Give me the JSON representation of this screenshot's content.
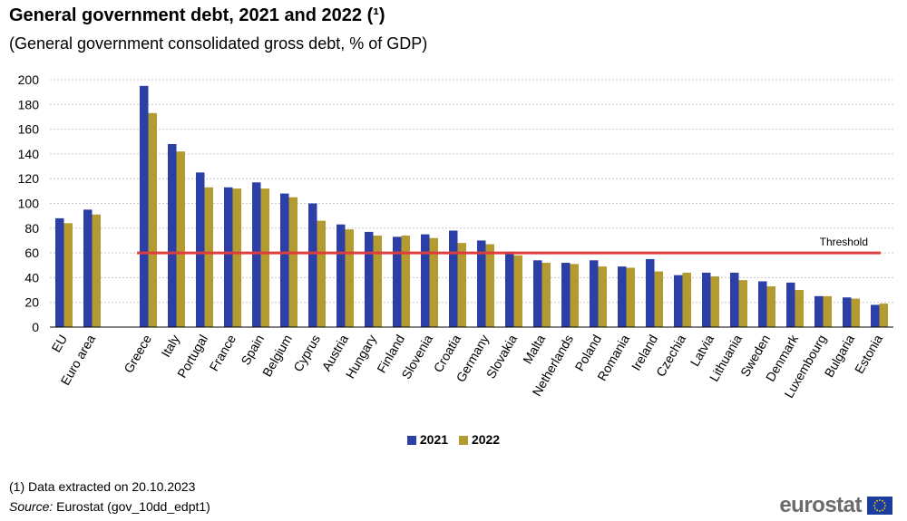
{
  "title": "General government debt, 2021 and 2022 (¹)",
  "subtitle": "(General government consolidated gross debt, % of GDP)",
  "footnote": "(1) Data extracted on 20.10.2023",
  "source": {
    "label": "Source:",
    "text": " Eurostat (gov_10dd_edpt1)"
  },
  "logo_text": "eurostat",
  "colors": {
    "series_2021": "#2b3fa6",
    "series_2022": "#b39a31",
    "threshold": "#e03c3c",
    "grid": "#c8c8c8"
  },
  "chart_data": {
    "type": "bar",
    "title": "General government debt, 2021 and 2022 (¹)",
    "subtitle": "(General government consolidated gross debt, % of GDP)",
    "ylim": [
      0,
      200
    ],
    "yticks": [
      0,
      20,
      40,
      60,
      80,
      100,
      120,
      140,
      160,
      180,
      200
    ],
    "grid": true,
    "legend_position": "bottom",
    "categories": [
      "EU",
      "Euro area",
      "",
      "Greece",
      "Italy",
      "Portugal",
      "France",
      "Spain",
      "Belgium",
      "Cyprus",
      "Austria",
      "Hungary",
      "Finland",
      "Slovenia",
      "Croatia",
      "Germany",
      "Slovakia",
      "Malta",
      "Netherlands",
      "Poland",
      "Romania",
      "Ireland",
      "Czechia",
      "Latvia",
      "Lithuania",
      "Sweden",
      "Denmark",
      "Luxembourg",
      "Bulgaria",
      "Estonia"
    ],
    "series": [
      {
        "name": "2021",
        "values": [
          88,
          95,
          null,
          195,
          148,
          125,
          113,
          117,
          108,
          100,
          83,
          77,
          73,
          75,
          78,
          70,
          61,
          54,
          52,
          54,
          49,
          55,
          42,
          44,
          44,
          37,
          36,
          25,
          24,
          18
        ]
      },
      {
        "name": "2022",
        "values": [
          84,
          91,
          null,
          173,
          142,
          113,
          112,
          112,
          105,
          86,
          79,
          74,
          74,
          72,
          68,
          67,
          58,
          52,
          51,
          49,
          48,
          45,
          44,
          41,
          38,
          33,
          30,
          25,
          23,
          19
        ]
      }
    ],
    "threshold": {
      "label": "Threshold",
      "value": 60
    }
  }
}
